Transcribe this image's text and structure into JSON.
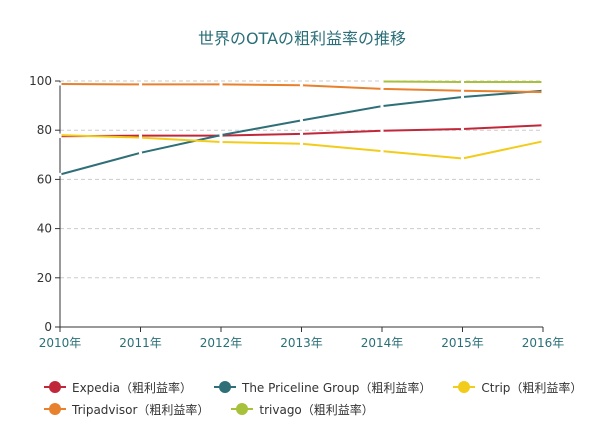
{
  "chart_data": {
    "type": "line",
    "title": "世界のOTAの粗利益率の推移",
    "categories": [
      "2010年",
      "2011年",
      "2012年",
      "2013年",
      "2014年",
      "2015年",
      "2016年"
    ],
    "ylim": [
      0,
      100
    ],
    "yticks": [
      "0",
      "20",
      "40",
      "60",
      "80",
      "100"
    ],
    "grid": true,
    "legend_position": "bottom",
    "series": [
      {
        "name": "Expedia（粗利益率）",
        "color": "#c0283a",
        "values": [
          77.5,
          77.8,
          77.8,
          78.5,
          79.8,
          80.5,
          82.0
        ]
      },
      {
        "name": "The Priceline Group（粗利益率）",
        "color": "#2e6f78",
        "values": [
          62.0,
          70.8,
          78.0,
          84.0,
          89.8,
          93.5,
          96.0
        ]
      },
      {
        "name": "Ctrip（粗利益率）",
        "color": "#f2cc1a",
        "values": [
          78.0,
          77.0,
          75.2,
          74.5,
          71.5,
          68.5,
          75.5
        ]
      },
      {
        "name": "Tripadvisor（粗利益率）",
        "color": "#e8812d",
        "values": [
          98.8,
          98.6,
          98.6,
          98.3,
          96.8,
          96.0,
          95.5
        ]
      },
      {
        "name": "trivago（粗利益率）",
        "color": "#a7c13a",
        "values": [
          null,
          null,
          null,
          null,
          99.8,
          99.6,
          99.6
        ]
      }
    ]
  }
}
